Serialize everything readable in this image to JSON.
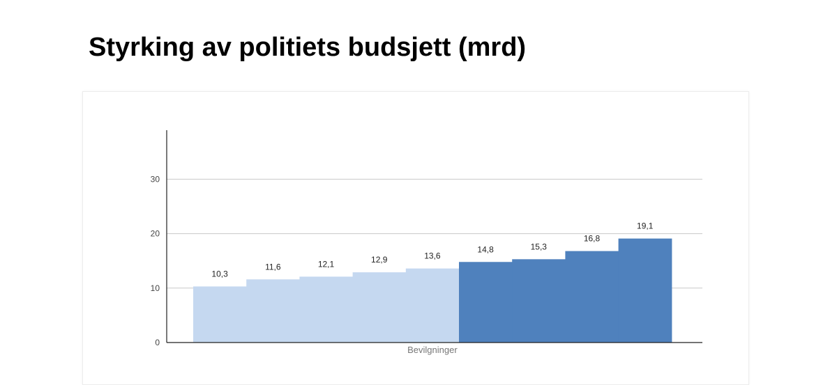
{
  "page": {
    "title": "Styrking av politiets budsjett (mrd)"
  },
  "chart_data": {
    "type": "bar",
    "title": "Styrking av politiets budsjett (mrd)",
    "xlabel": "Bevilgninger",
    "ylabel": "",
    "ylim": [
      0,
      39
    ],
    "yticks": [
      0,
      10,
      20,
      30
    ],
    "grid": true,
    "legend": "none",
    "value_labels": [
      "10,3",
      "11,6",
      "12,1",
      "12,9",
      "13,6",
      "14,8",
      "15,3",
      "16,8",
      "19,1"
    ],
    "values": [
      10.3,
      11.6,
      12.1,
      12.9,
      13.6,
      14.8,
      15.3,
      16.8,
      19.1
    ],
    "colors": [
      "#c5d8f0",
      "#c5d8f0",
      "#c5d8f0",
      "#c5d8f0",
      "#c5d8f0",
      "#4f81bd",
      "#4f81bd",
      "#4f81bd",
      "#4f81bd"
    ]
  }
}
